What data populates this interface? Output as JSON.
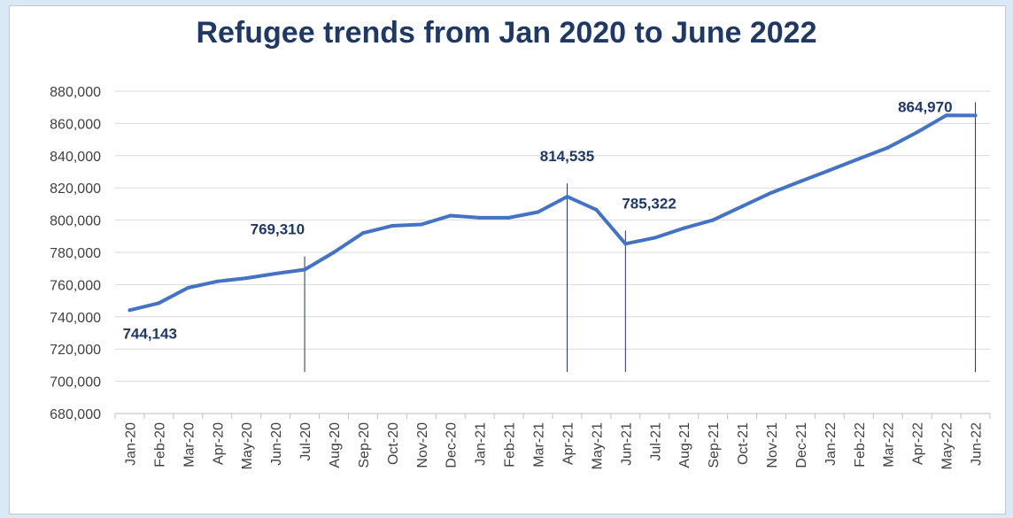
{
  "chart_data": {
    "type": "line",
    "title": "Refugee trends from Jan 2020 to June 2022",
    "xlabel": "",
    "ylabel": "",
    "ylim": [
      680000,
      880000
    ],
    "yticks": [
      "680,000",
      "700,000",
      "720,000",
      "740,000",
      "760,000",
      "780,000",
      "800,000",
      "820,000",
      "840,000",
      "860,000",
      "880,000"
    ],
    "categories": [
      "Jan-20",
      "Feb-20",
      "Mar-20",
      "Apr-20",
      "May-20",
      "Jun-20",
      "Jul-20",
      "Aug-20",
      "Sep-20",
      "Oct-20",
      "Nov-20",
      "Dec-20",
      "Jan-21",
      "Feb-21",
      "Mar-21",
      "Apr-21",
      "May-21",
      "Jun-21",
      "Jul-21",
      "Aug-21",
      "Sep-21",
      "Oct-21",
      "Nov-21",
      "Dec-21",
      "Jan-22",
      "Feb-22",
      "Mar-22",
      "Apr-22",
      "May-22",
      "Jun-22"
    ],
    "series": [
      {
        "values": [
          744143,
          748500,
          758000,
          762000,
          764000,
          766800,
          769310,
          780000,
          792000,
          796500,
          797300,
          802800,
          801500,
          801500,
          805000,
          814535,
          806500,
          785322,
          789000,
          795000,
          800000,
          808500,
          817000,
          824000,
          831000,
          838000,
          845000,
          854500,
          865000,
          864970
        ],
        "color": "#4472c4"
      }
    ],
    "annotations": [
      {
        "category": "Jan-20",
        "text": "744,143"
      },
      {
        "category": "Jul-20",
        "text": "769,310"
      },
      {
        "category": "Apr-21",
        "text": "814,535"
      },
      {
        "category": "Jun-21",
        "text": "785,322"
      },
      {
        "category": "Jun-22",
        "text": "864,970"
      }
    ],
    "grid": true,
    "legend": "none"
  }
}
